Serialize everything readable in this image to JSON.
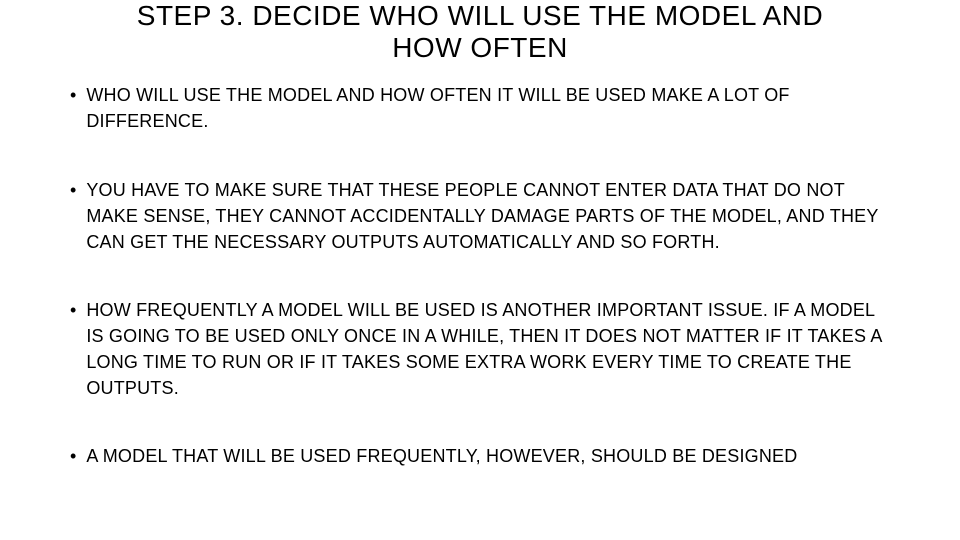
{
  "slide": {
    "title": "STEP 3. DECIDE WHO WILL USE THE MODEL AND HOW OFTEN",
    "title_fontsize": 28,
    "title_fontweight": 400,
    "title_align": "center",
    "bullets": [
      "WHO WILL USE THE MODEL AND HOW OFTEN IT WILL BE USED MAKE A LOT OF DIFFERENCE.",
      "YOU HAVE TO MAKE SURE THAT THESE PEOPLE CANNOT ENTER DATA THAT DO NOT MAKE SENSE, THEY CANNOT ACCIDENTALLY DAMAGE PARTS OF THE MODEL, AND THEY CAN GET THE NECESSARY OUTPUTS AUTOMATICALLY AND SO FORTH.",
      "HOW FREQUENTLY A MODEL WILL BE USED IS ANOTHER IMPORTANT ISSUE. IF A MODEL IS GOING TO BE USED ONLY ONCE IN A WHILE, THEN IT DOES NOT MATTER IF IT TAKES A LONG TIME TO RUN OR IF IT TAKES SOME EXTRA WORK EVERY TIME TO CREATE THE OUTPUTS.",
      "A MODEL THAT WILL BE USED FREQUENTLY, HOWEVER, SHOULD BE DESIGNED"
    ],
    "bullet_marker": "•",
    "bullet_fontsize": 18,
    "bullet_lineheight": 1.45,
    "background_color": "#ffffff",
    "text_color": "#000000",
    "font_family": "Arial"
  }
}
